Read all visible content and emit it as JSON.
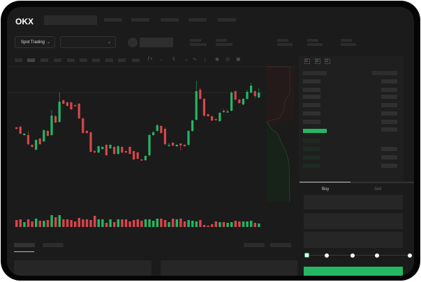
{
  "brand": {
    "logo": "OKX"
  },
  "header": {
    "nav_items": [
      "",
      "",
      "",
      "",
      ""
    ]
  },
  "toolbar": {
    "market_select": "Spot Trading",
    "pair_select": "",
    "dropdown_icon": "chevron-down-icon"
  },
  "chart_tools": [
    "indicator-icon",
    "line-icon",
    "trend-icon",
    "ruler-icon",
    "camera-icon",
    "settings-icon",
    "fullscreen-icon"
  ],
  "colors": {
    "up": "#25b764",
    "down": "#d9454b",
    "accent": "#25b764",
    "background": "#1b1b1b"
  },
  "chart_data": {
    "type": "candlestick",
    "candles": [
      [
        118,
        116,
        119,
        115
      ],
      [
        119,
        109,
        120,
        108
      ],
      [
        107,
        109,
        110,
        106
      ],
      [
        107,
        94,
        113,
        92
      ],
      [
        93,
        90,
        94,
        88
      ],
      [
        86,
        100,
        101,
        85
      ],
      [
        102,
        94,
        103,
        93
      ],
      [
        98,
        114,
        115,
        97
      ],
      [
        113,
        106,
        114,
        105
      ],
      [
        107,
        135,
        143,
        106
      ],
      [
        134,
        125,
        136,
        124
      ],
      [
        126,
        155,
        168,
        125
      ],
      [
        157,
        152,
        158,
        151
      ],
      [
        154,
        149,
        155,
        148
      ],
      [
        154,
        144,
        155,
        143
      ],
      [
        150,
        149,
        151,
        148
      ],
      [
        152,
        131,
        153,
        130
      ],
      [
        131,
        110,
        132,
        109
      ],
      [
        113,
        110,
        114,
        109
      ],
      [
        111,
        83,
        112,
        82
      ],
      [
        84,
        82,
        85,
        81
      ],
      [
        82,
        91,
        92,
        81
      ],
      [
        87,
        90,
        91,
        86
      ],
      [
        93,
        78,
        94,
        77
      ],
      [
        88,
        93,
        94,
        87
      ],
      [
        90,
        80,
        91,
        79
      ],
      [
        80,
        91,
        92,
        79
      ],
      [
        90,
        82,
        91,
        81
      ],
      [
        84,
        82,
        85,
        81
      ],
      [
        90,
        80,
        91,
        79
      ],
      [
        84,
        72,
        85,
        71
      ],
      [
        82,
        73,
        83,
        72
      ],
      [
        72,
        71,
        73,
        70
      ],
      [
        71,
        77,
        78,
        70
      ],
      [
        78,
        107,
        109,
        76
      ],
      [
        107,
        111,
        113,
        106
      ],
      [
        113,
        121,
        123,
        112
      ],
      [
        120,
        110,
        121,
        109
      ],
      [
        116,
        94,
        118,
        92
      ],
      [
        93,
        93,
        96,
        90
      ],
      [
        96,
        92,
        97,
        91
      ],
      [
        91,
        93,
        94,
        90
      ],
      [
        95,
        92,
        95,
        85
      ],
      [
        93,
        91,
        94,
        90
      ],
      [
        93,
        113,
        114,
        92
      ],
      [
        113,
        128,
        129,
        112
      ],
      [
        129,
        170,
        185,
        128
      ],
      [
        172,
        159,
        175,
        158
      ],
      [
        159,
        135,
        160,
        133
      ],
      [
        137,
        134,
        138,
        133
      ],
      [
        134,
        128,
        135,
        127
      ],
      [
        130,
        129,
        131,
        128
      ],
      [
        127,
        139,
        140,
        126
      ],
      [
        142,
        140,
        145,
        139
      ],
      [
        141,
        141,
        144,
        139
      ],
      [
        142,
        168,
        170,
        141
      ],
      [
        170,
        158,
        171,
        157
      ],
      [
        158,
        153,
        159,
        152
      ],
      [
        151,
        159,
        160,
        150
      ],
      [
        159,
        169,
        172,
        158
      ],
      [
        168,
        178,
        182,
        167
      ],
      [
        170,
        163,
        171,
        160
      ],
      [
        161,
        168,
        174,
        160
      ]
    ],
    "volume": [
      10,
      11,
      7,
      11,
      8,
      12,
      9,
      9,
      10,
      17,
      14,
      17,
      11,
      11,
      10,
      8,
      13,
      11,
      11,
      10,
      16,
      11,
      11,
      6,
      11,
      7,
      11,
      11,
      11,
      8,
      10,
      11,
      9,
      11,
      11,
      9,
      12,
      12,
      10,
      7,
      12,
      11,
      12,
      8,
      10,
      9,
      8,
      10,
      3,
      2,
      4,
      8,
      7,
      7,
      6,
      7,
      9,
      8,
      8,
      8,
      9,
      6,
      5
    ]
  },
  "order_book": {
    "view_icons": [
      "book-both-icon",
      "book-buy-icon",
      "book-sell-icon"
    ]
  },
  "trade_panel": {
    "tabs": [
      "Buy",
      "Sell"
    ],
    "active_tab": "Buy",
    "slider_percent": 0,
    "slider_marks": [
      0,
      25,
      50,
      75,
      100
    ]
  },
  "bottom": {
    "tabs": [
      "",
      ""
    ]
  }
}
